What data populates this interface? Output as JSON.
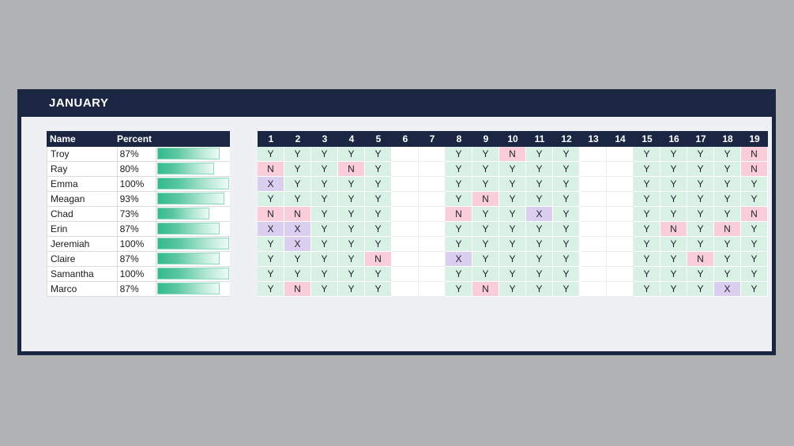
{
  "title": "JANUARY",
  "colors": {
    "page_bg": "#b1b2b4",
    "navy": "#1b2742",
    "card_bg": "#eef0f3",
    "present_bg": "#d9f1e5",
    "absent_bg": "#f9cdd9",
    "excused_bg": "#dbcff0",
    "bar_border": "#8bd8bd",
    "bar_gradient_start": "#35ba8e",
    "bar_gradient_end": "#eefaf5"
  },
  "roster": {
    "name_header": "Name",
    "percent_header": "Percent",
    "rows": [
      {
        "name": "Troy",
        "percent": "87%",
        "percent_value": 87
      },
      {
        "name": "Ray",
        "percent": "80%",
        "percent_value": 80
      },
      {
        "name": "Emma",
        "percent": "100%",
        "percent_value": 100
      },
      {
        "name": "Meagan",
        "percent": "93%",
        "percent_value": 93
      },
      {
        "name": "Chad",
        "percent": "73%",
        "percent_value": 73
      },
      {
        "name": "Erin",
        "percent": "87%",
        "percent_value": 87
      },
      {
        "name": "Jeremiah",
        "percent": "100%",
        "percent_value": 100
      },
      {
        "name": "Claire",
        "percent": "87%",
        "percent_value": 87
      },
      {
        "name": "Samantha",
        "percent": "100%",
        "percent_value": 100
      },
      {
        "name": "Marco",
        "percent": "87%",
        "percent_value": 87
      }
    ]
  },
  "attendance": {
    "day_headers": [
      "1",
      "2",
      "3",
      "4",
      "5",
      "6",
      "7",
      "8",
      "9",
      "10",
      "11",
      "12",
      "13",
      "14",
      "15",
      "16",
      "17",
      "18",
      "19"
    ],
    "rows": [
      {
        "name": "Troy",
        "days": [
          "Y",
          "Y",
          "Y",
          "Y",
          "Y",
          "",
          "",
          "Y",
          "Y",
          "N",
          "Y",
          "Y",
          "",
          "",
          "Y",
          "Y",
          "Y",
          "Y",
          "N"
        ]
      },
      {
        "name": "Ray",
        "days": [
          "N",
          "Y",
          "Y",
          "N",
          "Y",
          "",
          "",
          "Y",
          "Y",
          "Y",
          "Y",
          "Y",
          "",
          "",
          "Y",
          "Y",
          "Y",
          "Y",
          "N"
        ]
      },
      {
        "name": "Emma",
        "days": [
          "X",
          "Y",
          "Y",
          "Y",
          "Y",
          "",
          "",
          "Y",
          "Y",
          "Y",
          "Y",
          "Y",
          "",
          "",
          "Y",
          "Y",
          "Y",
          "Y",
          "Y"
        ]
      },
      {
        "name": "Meagan",
        "days": [
          "Y",
          "Y",
          "Y",
          "Y",
          "Y",
          "",
          "",
          "Y",
          "N",
          "Y",
          "Y",
          "Y",
          "",
          "",
          "Y",
          "Y",
          "Y",
          "Y",
          "Y"
        ]
      },
      {
        "name": "Chad",
        "days": [
          "N",
          "N",
          "Y",
          "Y",
          "Y",
          "",
          "",
          "N",
          "Y",
          "Y",
          "X",
          "Y",
          "",
          "",
          "Y",
          "Y",
          "Y",
          "Y",
          "N"
        ]
      },
      {
        "name": "Erin",
        "days": [
          "X",
          "X",
          "Y",
          "Y",
          "Y",
          "",
          "",
          "Y",
          "Y",
          "Y",
          "Y",
          "Y",
          "",
          "",
          "Y",
          "N",
          "Y",
          "N",
          "Y"
        ]
      },
      {
        "name": "Jeremiah",
        "days": [
          "Y",
          "X",
          "Y",
          "Y",
          "Y",
          "",
          "",
          "Y",
          "Y",
          "Y",
          "Y",
          "Y",
          "",
          "",
          "Y",
          "Y",
          "Y",
          "Y",
          "Y"
        ]
      },
      {
        "name": "Claire",
        "days": [
          "Y",
          "Y",
          "Y",
          "Y",
          "N",
          "",
          "",
          "X",
          "Y",
          "Y",
          "Y",
          "Y",
          "",
          "",
          "Y",
          "Y",
          "N",
          "Y",
          "Y"
        ]
      },
      {
        "name": "Samantha",
        "days": [
          "Y",
          "Y",
          "Y",
          "Y",
          "Y",
          "",
          "",
          "Y",
          "Y",
          "Y",
          "Y",
          "Y",
          "",
          "",
          "Y",
          "Y",
          "Y",
          "Y",
          "Y"
        ]
      },
      {
        "name": "Marco",
        "days": [
          "Y",
          "N",
          "Y",
          "Y",
          "Y",
          "",
          "",
          "Y",
          "N",
          "Y",
          "Y",
          "Y",
          "",
          "",
          "Y",
          "Y",
          "Y",
          "X",
          "Y"
        ]
      }
    ]
  }
}
